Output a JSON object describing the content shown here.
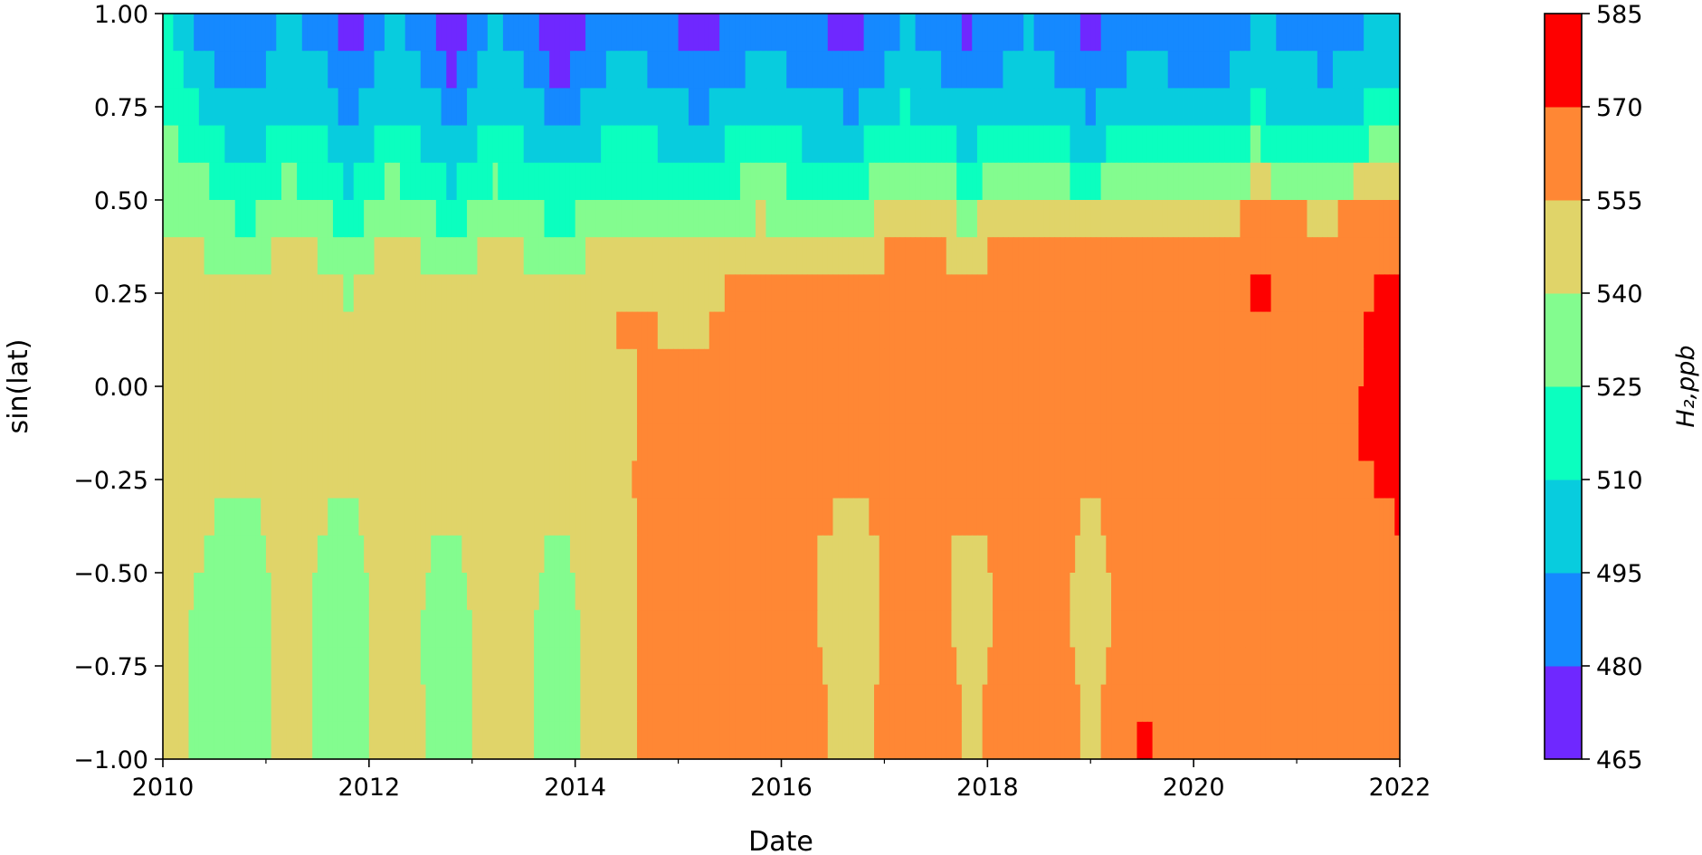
{
  "chart_data": {
    "type": "heatmap",
    "subtype": "filled-contour",
    "xlabel": "Date",
    "ylabel": "sin(lat)",
    "xlim": [
      2010,
      2022
    ],
    "ylim": [
      -1.0,
      1.0
    ],
    "x_ticks": [
      2010,
      2012,
      2014,
      2016,
      2018,
      2020,
      2022
    ],
    "x_tick_labels": [
      "2010",
      "2012",
      "2014",
      "2016",
      "2018",
      "2020",
      "2022"
    ],
    "x_minor_ticks": [
      2011,
      2013,
      2015,
      2017,
      2019,
      2021
    ],
    "y_ticks": [
      1.0,
      0.75,
      0.5,
      0.25,
      0.0,
      -0.25,
      -0.5,
      -0.75,
      -1.0
    ],
    "y_tick_labels": [
      "1.00",
      "0.75",
      "0.50",
      "0.25",
      "0.00",
      "−0.25",
      "−0.50",
      "−0.75",
      "−1.00"
    ],
    "grid": false,
    "colorbar": {
      "label": "H₂,ppb",
      "levels": [
        465,
        480,
        495,
        510,
        525,
        540,
        555,
        570,
        585
      ],
      "tick_labels": [
        "465",
        "480",
        "495",
        "510",
        "525",
        "540",
        "555",
        "570",
        "585"
      ],
      "colors": [
        "#6f28ff",
        "#1589ff",
        "#08ccde",
        "#0bffbf",
        "#83fc8f",
        "#e0d469",
        "#ff8734",
        "#fe0000"
      ]
    },
    "bands": [
      {
        "y": 0.95,
        "values": [
          515,
          490,
          480,
          500,
          488,
          470,
          500,
          485,
          470,
          498,
          485,
          468,
          492,
          488,
          472,
          495,
          485,
          475,
          498,
          488,
          478,
          496,
          486,
          476,
          495,
          488,
          482,
          498,
          493,
          487,
          503
        ]
      },
      {
        "y": 0.85,
        "values": [
          520,
          498,
          487,
          505,
          495,
          480,
          506,
          492,
          478,
          503,
          492,
          475,
          498,
          494,
          482,
          500,
          492,
          484,
          503,
          494,
          486,
          501,
          492,
          484,
          500,
          494,
          490,
          504,
          499,
          494,
          510
        ]
      },
      {
        "y": 0.75,
        "values": [
          525,
          508,
          495,
          510,
          502,
          490,
          510,
          500,
          488,
          508,
          500,
          487,
          505,
          502,
          493,
          508,
          500,
          494,
          511,
          502,
          496,
          509,
          499,
          494,
          509,
          502,
          498,
          512,
          506,
          502,
          517
        ]
      },
      {
        "y": 0.65,
        "values": [
          530,
          517,
          503,
          518,
          510,
          499,
          518,
          508,
          498,
          516,
          508,
          499,
          514,
          510,
          504,
          518,
          510,
          506,
          523,
          513,
          508,
          521,
          510,
          506,
          522,
          514,
          511,
          526,
          520,
          518,
          530
        ]
      },
      {
        "y": 0.55,
        "values": [
          535,
          526,
          512,
          527,
          518,
          508,
          528,
          518,
          508,
          526,
          518,
          510,
          525,
          521,
          516,
          530,
          522,
          520,
          535,
          527,
          522,
          535,
          525,
          521,
          538,
          531,
          527,
          543,
          537,
          535,
          548
        ]
      },
      {
        "y": 0.45,
        "values": [
          540,
          534,
          522,
          536,
          528,
          518,
          537,
          527,
          520,
          535,
          528,
          520,
          535,
          532,
          528,
          541,
          535,
          534,
          548,
          542,
          538,
          550,
          543,
          540,
          554,
          549,
          546,
          560,
          556,
          554,
          562
        ]
      },
      {
        "y": 0.35,
        "values": [
          543,
          540,
          531,
          545,
          538,
          528,
          547,
          537,
          532,
          545,
          538,
          533,
          546,
          544,
          541,
          553,
          549,
          548,
          559,
          555,
          552,
          562,
          557,
          555,
          566,
          562,
          560,
          569,
          566,
          565,
          569
        ]
      },
      {
        "y": 0.25,
        "values": [
          546,
          545,
          540,
          549,
          546,
          538,
          552,
          546,
          541,
          551,
          546,
          543,
          553,
          552,
          550,
          562,
          560,
          558,
          566,
          563,
          560,
          567,
          565,
          563,
          569,
          567,
          565,
          571,
          569,
          568,
          571
        ]
      },
      {
        "y": 0.15,
        "values": [
          547,
          548,
          545,
          550,
          549,
          545,
          552,
          550,
          547,
          552,
          550,
          548,
          555,
          555,
          553,
          563,
          562,
          560,
          566,
          564,
          562,
          567,
          566,
          564,
          569,
          568,
          566,
          570,
          569,
          568,
          572
        ]
      },
      {
        "y": 0.05,
        "values": [
          548,
          549,
          547,
          550,
          549,
          547,
          551,
          550,
          548,
          551,
          550,
          548,
          554,
          556,
          556,
          561,
          561,
          560,
          565,
          564,
          562,
          566,
          565,
          564,
          567,
          567,
          566,
          569,
          568,
          567,
          573
        ]
      },
      {
        "y": -0.05,
        "values": [
          548,
          548,
          546,
          549,
          549,
          547,
          550,
          549,
          548,
          550,
          550,
          548,
          553,
          557,
          558,
          560,
          561,
          560,
          564,
          563,
          562,
          565,
          564,
          563,
          567,
          568,
          566,
          569,
          568,
          566,
          575
        ]
      },
      {
        "y": -0.15,
        "values": [
          547,
          546,
          544,
          548,
          548,
          547,
          550,
          549,
          548,
          551,
          550,
          548,
          552,
          558,
          559,
          559,
          560,
          559,
          563,
          562,
          561,
          564,
          563,
          562,
          566,
          567,
          565,
          568,
          567,
          565,
          576
        ]
      },
      {
        "y": -0.25,
        "values": [
          546,
          543,
          540,
          547,
          545,
          542,
          549,
          548,
          547,
          550,
          549,
          546,
          552,
          559,
          558,
          558,
          559,
          557,
          562,
          560,
          558,
          563,
          561,
          557,
          565,
          566,
          562,
          567,
          565,
          562,
          574
        ]
      },
      {
        "y": -0.35,
        "values": [
          545,
          541,
          536,
          546,
          540,
          537,
          548,
          544,
          542,
          549,
          546,
          540,
          551,
          559,
          557,
          557,
          558,
          553,
          561,
          558,
          555,
          562,
          558,
          553,
          564,
          564,
          559,
          566,
          563,
          559,
          571
        ]
      },
      {
        "y": -0.45,
        "values": [
          545,
          540,
          534,
          545,
          538,
          535,
          547,
          540,
          538,
          548,
          543,
          537,
          550,
          559,
          556,
          556,
          557,
          550,
          560,
          556,
          552,
          561,
          556,
          551,
          563,
          562,
          556,
          565,
          561,
          556,
          568
        ]
      },
      {
        "y": -0.55,
        "values": [
          544,
          539,
          533,
          544,
          537,
          534,
          546,
          539,
          536,
          547,
          541,
          535,
          550,
          559,
          556,
          556,
          557,
          549,
          560,
          556,
          551,
          560,
          555,
          550,
          563,
          561,
          555,
          565,
          561,
          555,
          566
        ]
      },
      {
        "y": -0.65,
        "values": [
          544,
          538,
          532,
          544,
          537,
          533,
          546,
          538,
          535,
          546,
          540,
          534,
          550,
          559,
          557,
          556,
          558,
          549,
          560,
          557,
          551,
          560,
          555,
          550,
          564,
          562,
          555,
          566,
          562,
          555,
          566
        ]
      },
      {
        "y": -0.75,
        "values": [
          544,
          538,
          532,
          544,
          537,
          533,
          546,
          538,
          535,
          546,
          540,
          534,
          550,
          560,
          558,
          557,
          559,
          550,
          561,
          558,
          552,
          561,
          556,
          551,
          566,
          564,
          556,
          568,
          564,
          556,
          566
        ]
      },
      {
        "y": -0.85,
        "values": [
          544,
          538,
          532,
          544,
          537,
          533,
          546,
          539,
          535,
          546,
          540,
          534,
          550,
          561,
          559,
          557,
          560,
          550,
          562,
          559,
          553,
          562,
          557,
          552,
          570,
          566,
          557,
          569,
          565,
          557,
          566
        ]
      },
      {
        "y": -0.95,
        "values": [
          544,
          538,
          532,
          544,
          537,
          533,
          546,
          539,
          535,
          546,
          540,
          534,
          550,
          561,
          559,
          557,
          560,
          550,
          562,
          559,
          553,
          562,
          557,
          552,
          572,
          567,
          557,
          570,
          565,
          557,
          566
        ]
      }
    ],
    "band_x": [
      2010.0,
      2010.4,
      2010.8,
      2011.2,
      2011.6,
      2011.8,
      2012.2,
      2012.6,
      2012.8,
      2013.2,
      2013.6,
      2013.8,
      2014.4,
      2014.8,
      2015.2,
      2015.8,
      2016.2,
      2016.7,
      2017.2,
      2017.6,
      2017.8,
      2018.4,
      2018.8,
      2019.0,
      2019.5,
      2019.8,
      2020.2,
      2020.6,
      2020.9,
      2021.3,
      2022.0
    ]
  }
}
